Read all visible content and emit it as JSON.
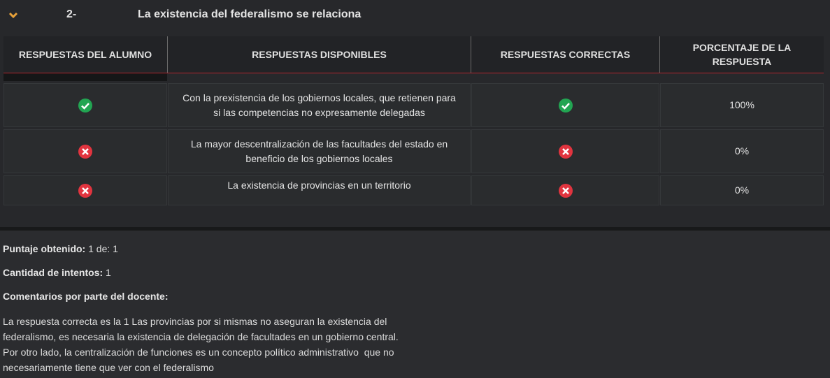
{
  "question": {
    "number": "2-",
    "title": "La existencia del federalismo se relaciona"
  },
  "table": {
    "headers": [
      "RESPUESTAS DEL ALUMNO",
      "RESPUESTAS DISPONIBLES",
      "RESPUESTAS CORRECTAS",
      "PORCENTAJE DE LA RESPUESTA"
    ],
    "rows": [
      {
        "answer": "Con la prexistencia de los gobiernos locales, que retienen para si las competencias no expresamente delegadas",
        "percentage": "100%"
      },
      {
        "answer": "La mayor descentralización de las facultades del estado en beneficio de los gobiernos locales",
        "percentage": "0%"
      },
      {
        "answer": "La existencia de provincias en un territorio",
        "percentage": "0%"
      }
    ]
  },
  "summary": {
    "score_label": "Puntaje obtenido:",
    "score_value": "1 de: 1",
    "attempts_label": "Cantidad de intentos:",
    "attempts_value": "1",
    "comments_label": "Comentarios por parte del docente:",
    "comment_lines": [
      "La respuesta correcta es la 1 Las provincias por si mismas no aseguran la existencia del",
      "federalismo, es necesaria la existencia de delegación de facultades en un gobierno central.",
      "Por otro lado, la centralización de funciones es un concepto político administrativo  que no",
      "necesariamente tiene que ver con el federalismo"
    ]
  }
}
